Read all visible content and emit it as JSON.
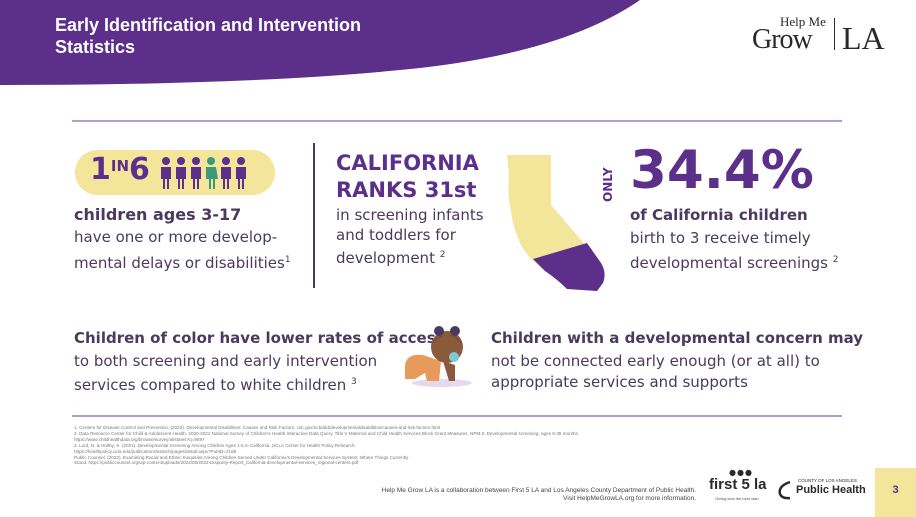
{
  "header": {
    "title": "Early Identification and Intervention Statistics"
  },
  "logo": {
    "help": "Help Me",
    "grow": "Grow",
    "la": "LA"
  },
  "stat1": {
    "one": "1",
    "in": "IN",
    "six": "6",
    "heading": "children ages 3-17",
    "body": "have one or more develop-mental delays or disabilities",
    "ref": "1"
  },
  "stat2": {
    "heading_line1": "CALIFORNIA",
    "heading_line2": "RANKS 31st",
    "body": "in screening infants and toddlers for development",
    "ref": "2"
  },
  "stat3": {
    "only": "ONLY",
    "percent": "34.4%",
    "heading": "of California children",
    "body": "birth to 3 receive timely developmental screenings",
    "ref": "2"
  },
  "bottom1": {
    "heading": "Children of color have lower rates of access",
    "body": "to both screening and early intervention services compared to white children",
    "ref": "3"
  },
  "bottom2": {
    "heading": "Children with a developmental concern may",
    "body": "not be connected early enough (or at all) to appropriate services and supports"
  },
  "references": [
    "1.   Centers for Disease Control and Prevention. (2022). Developmental Disabilities: Causes and Risk Factors. cdc.gov/ncbddd/developmentaldisabilities/causes-and-risk-factors.html",
    "2.   Data Resource Center for Child & Adolescent Health. 2020-2021 National Survey of Children's Health Interactive Data Query. Title V Maternal and Child Health Services Block Grant Measures. NPM 6: Developmental screening, ages 9-35 months.",
    "      https://www.childhealthdata.org/browse/survey/allstates?q=9597",
    "3.   Lord, N. & Holtby, S. (2021). Developmental Screening Among Children Ages 1-5 in California. UCLA Center for Health Policy Research.",
    "      https://healthpolicy.ucla.edu/publications/search/pages/detail.aspx?PubID=2189",
    "      Public Counsel. (2022). Examining Racial and Ethnic Inequities Among Children Served Under California's Developmental Services System: Where Things Currently",
    "      Stand. https://publiccounsel.org/wp-content/uploads/2022/05/2022-Disparity-Report_California-developmental-services_regional-centers.pdf"
  ],
  "footer": {
    "line1": "Help Me Grow LA is a collaboration between First 5 LA and Los Angeles County Department of Public Health.",
    "line2": "Visit HelpMeGrowLA.org for more information.",
    "first5_dots": "●●●",
    "first5_name": "first 5 la",
    "first5_tag": "Giving kids the best start",
    "ph_county": "COUNTY OF LOS ANGELES",
    "ph_name": "Public Health",
    "page": "3"
  },
  "colors": {
    "purple": "#5b2f8a",
    "yellow": "#f3e59a",
    "text": "#4a3a5e"
  }
}
